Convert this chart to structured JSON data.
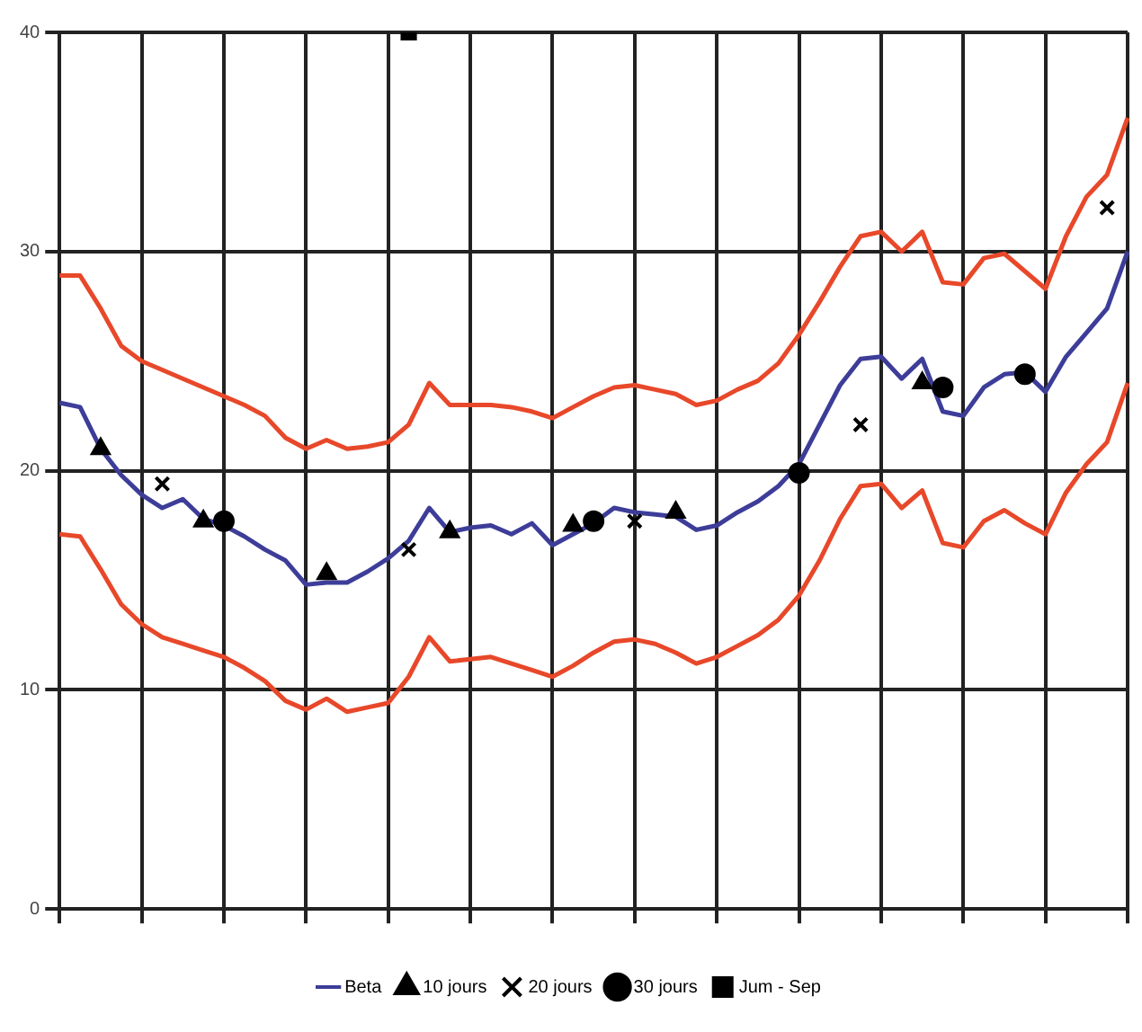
{
  "chart_data": {
    "type": "line",
    "categories": [
      null,
      null,
      null,
      null,
      null,
      null,
      null,
      null,
      null,
      null,
      null,
      null,
      null,
      null,
      null,
      null,
      null,
      null,
      null,
      null,
      null,
      null,
      null,
      null,
      null,
      null,
      null,
      null,
      null,
      null,
      null,
      null,
      null,
      null,
      null,
      null,
      null,
      null,
      null,
      null,
      null,
      null,
      null,
      null,
      null,
      null,
      null,
      null,
      null,
      null,
      null,
      null,
      null
    ],
    "ylim": [
      0,
      40
    ],
    "yticks": [
      0,
      10,
      20,
      30,
      40
    ],
    "grid": true,
    "legend": "bottom",
    "series": [
      {
        "color": "#e8482a",
        "values": [
          28.9,
          28.9,
          27.4,
          25.7,
          25.0,
          24.6,
          24.2,
          23.8,
          23.4,
          23.0,
          22.5,
          21.5,
          21.0,
          21.4,
          21.0,
          21.1,
          21.3,
          22.1,
          24.0,
          23.0,
          23.0,
          23.0,
          22.9,
          22.7,
          22.4,
          22.9,
          23.4,
          23.8,
          23.9,
          23.7,
          23.5,
          23.0,
          23.2,
          23.7,
          24.1,
          24.9,
          26.2,
          27.7,
          29.3,
          30.7,
          30.9,
          30.0,
          30.9,
          28.6,
          28.5,
          29.7,
          29.9,
          29.1,
          28.3,
          30.7,
          32.5,
          33.5,
          36.1
        ]
      },
      {
        "color": "#e8482a",
        "values": [
          17.1,
          17.0,
          15.5,
          13.9,
          13.0,
          12.4,
          12.1,
          11.8,
          11.5,
          11.0,
          10.4,
          9.5,
          9.1,
          9.6,
          9.0,
          9.2,
          9.4,
          10.6,
          12.4,
          11.3,
          11.4,
          11.5,
          11.2,
          10.9,
          10.6,
          11.1,
          11.7,
          12.2,
          12.3,
          12.1,
          11.7,
          11.2,
          11.5,
          12.0,
          12.5,
          13.2,
          14.3,
          15.9,
          17.8,
          19.3,
          19.4,
          18.3,
          19.1,
          16.7,
          16.5,
          17.7,
          18.2,
          17.6,
          17.1,
          19.0,
          20.3,
          21.3,
          24.0
        ]
      },
      {
        "name": "Beta",
        "color": "#3d3d99",
        "values": [
          23.1,
          22.9,
          21.0,
          19.8,
          18.9,
          18.3,
          18.7,
          17.8,
          17.5,
          17.0,
          16.4,
          15.9,
          14.8,
          14.9,
          14.9,
          15.4,
          16.0,
          16.8,
          18.3,
          17.2,
          17.4,
          17.5,
          17.1,
          17.6,
          16.6,
          17.1,
          17.6,
          18.3,
          18.1,
          18.0,
          17.9,
          17.3,
          17.5,
          18.1,
          18.6,
          19.3,
          20.3,
          22.1,
          23.9,
          25.1,
          25.2,
          24.2,
          25.1,
          22.7,
          22.5,
          23.8,
          24.4,
          24.5,
          23.6,
          25.2,
          26.3,
          27.4,
          30.0
        ]
      },
      {
        "name": "10 jours",
        "color": "#000000",
        "type": "scatter",
        "marker": "triangle",
        "values": [
          null,
          null,
          21,
          null,
          null,
          null,
          null,
          17.7,
          null,
          null,
          null,
          null,
          null,
          15.3,
          null,
          null,
          null,
          null,
          null,
          17.2,
          null,
          null,
          null,
          null,
          null,
          17.5,
          null,
          null,
          null,
          null,
          18.1,
          null,
          null,
          null,
          null,
          null,
          null,
          null,
          null,
          null,
          null,
          null,
          24,
          null,
          null,
          null,
          null,
          null,
          null,
          null,
          null,
          null,
          null
        ]
      },
      {
        "name": "20 jours",
        "color": "#000000",
        "type": "scatter",
        "marker": "cross",
        "values": [
          null,
          null,
          null,
          null,
          null,
          19.4,
          null,
          null,
          null,
          null,
          null,
          null,
          null,
          null,
          null,
          null,
          null,
          16.4,
          null,
          null,
          null,
          null,
          null,
          null,
          null,
          null,
          null,
          null,
          17.7,
          null,
          null,
          null,
          null,
          null,
          null,
          null,
          null,
          null,
          null,
          22.1,
          null,
          null,
          null,
          null,
          null,
          null,
          null,
          null,
          null,
          null,
          null,
          32,
          null
        ]
      },
      {
        "name": "30 jours",
        "color": "#000000",
        "type": "scatter",
        "marker": "circle",
        "values": [
          null,
          null,
          null,
          null,
          null,
          null,
          null,
          null,
          17.7,
          null,
          null,
          null,
          null,
          null,
          null,
          null,
          null,
          null,
          null,
          null,
          null,
          null,
          null,
          null,
          null,
          null,
          17.7,
          null,
          null,
          null,
          null,
          null,
          null,
          null,
          null,
          null,
          19.9,
          null,
          null,
          null,
          null,
          null,
          null,
          23.8,
          null,
          null,
          null,
          24.4,
          null,
          null,
          null,
          null,
          null
        ]
      },
      {
        "name": "Jum - Sep",
        "color": "#000000",
        "type": "scatter",
        "marker": "square",
        "values": [
          null,
          null,
          null,
          null,
          null,
          null,
          null,
          null,
          null,
          null,
          null,
          null,
          null,
          null,
          null,
          null,
          null,
          40,
          null,
          null,
          null,
          null,
          null,
          null,
          null,
          null,
          null,
          null,
          null,
          null,
          null,
          null,
          null,
          null,
          null,
          null,
          null,
          null,
          null,
          null,
          null,
          null,
          null,
          null,
          null,
          null,
          null,
          null,
          null,
          null,
          null,
          null,
          null
        ]
      }
    ]
  }
}
